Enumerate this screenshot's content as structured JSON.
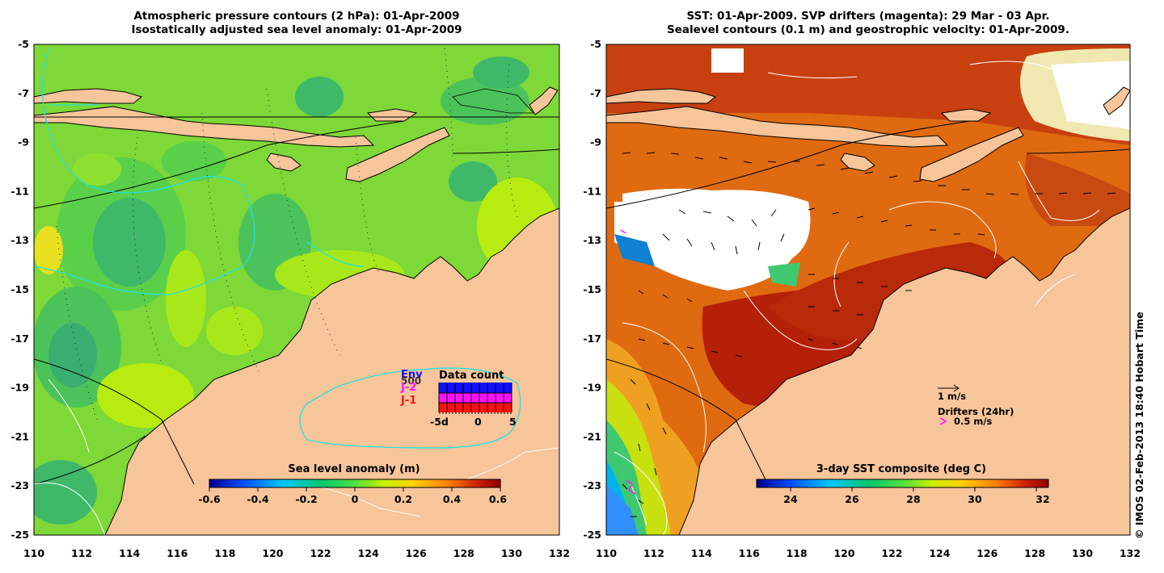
{
  "left_panel": {
    "title_line1": "Atmospheric pressure contours (2 hPa): 01-Apr-2009",
    "title_line2": "Isostatically adjusted sea level anomaly: 01-Apr-2009",
    "colorbar_label": "Sea level anomaly (m)",
    "colorbar_ticks": [
      "-0.6",
      "-0.4",
      "-0.2",
      "0",
      "0.2",
      "0.4",
      "0.6"
    ],
    "data_count": {
      "title": "Data count",
      "legend": [
        "Env",
        "J-2",
        "J-1"
      ],
      "legend_colors": [
        "#1010ff",
        "#ff10ff",
        "#ff1010"
      ],
      "scale_label": "500",
      "x_ticks": [
        "-5d",
        "0",
        "5"
      ]
    }
  },
  "right_panel": {
    "title_line1": "SST: 01-Apr-2009. SVP drifters (magenta): 29 Mar - 03 Apr.",
    "title_line2": "Sealevel contours (0.1 m) and geostrophic velocity: 01-Apr-2009.",
    "colorbar_label": "3-day SST composite (deg C)",
    "colorbar_ticks": [
      "24",
      "26",
      "28",
      "30",
      "32"
    ],
    "vector_scale_label": "1 m/s",
    "drifters_label": "Drifters (24hr)",
    "drifter_speed_label": "0.5 m/s"
  },
  "axes": {
    "x_ticks": [
      "110",
      "112",
      "114",
      "116",
      "118",
      "120",
      "122",
      "124",
      "126",
      "128",
      "130",
      "132"
    ],
    "y_ticks": [
      "-5",
      "-7",
      "-9",
      "-11",
      "-13",
      "-15",
      "-17",
      "-19",
      "-21",
      "-23",
      "-25"
    ]
  },
  "credit": "© IMOS 02-Feb-2013 18:40 Hobart Time",
  "colors": {
    "land": "#f7c59a",
    "sla_colormap": [
      "#00008f",
      "#0050ff",
      "#00c8ff",
      "#00c870",
      "#50e040",
      "#c8f000",
      "#ffd000",
      "#ff8000",
      "#d02000",
      "#8f0000"
    ],
    "sst_colormap": [
      "#00008f",
      "#0050ff",
      "#00c8ff",
      "#00c870",
      "#50e040",
      "#c8f000",
      "#ffd000",
      "#ff8000",
      "#d02000",
      "#8f0000"
    ]
  }
}
